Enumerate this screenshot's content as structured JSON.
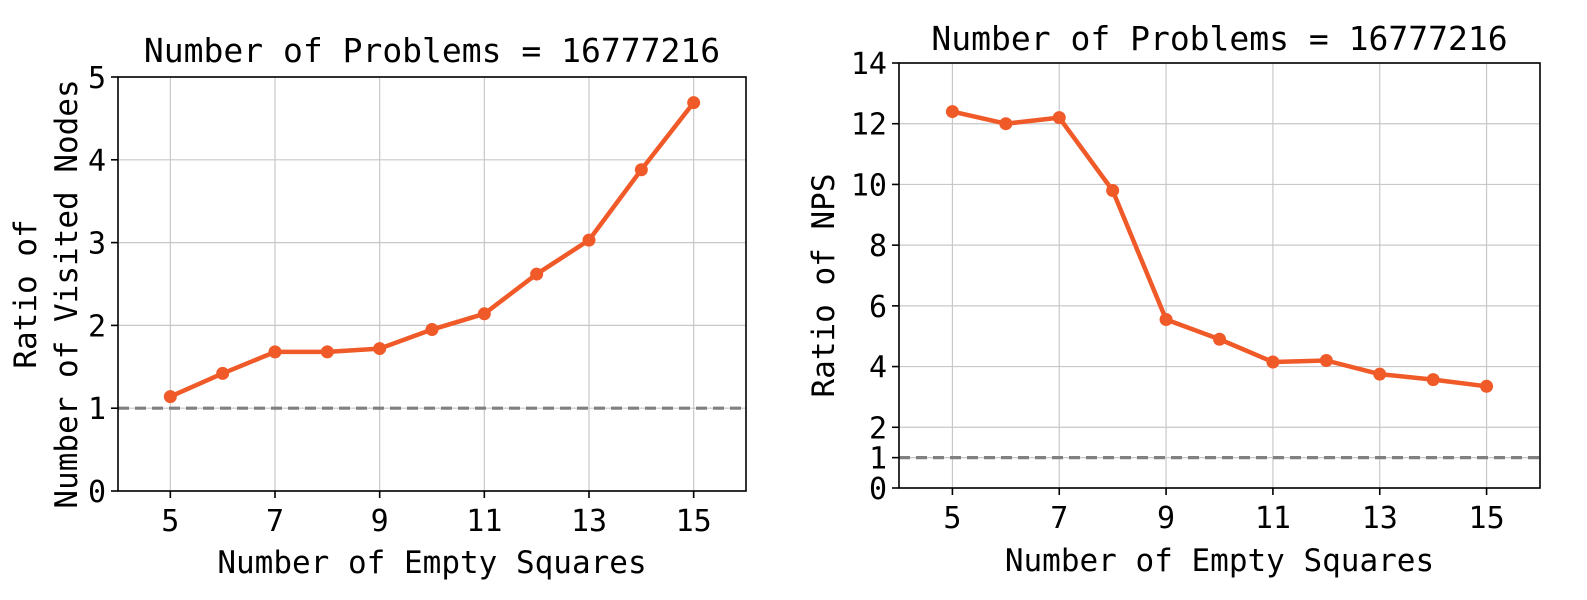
{
  "chart_data": [
    {
      "type": "line",
      "title": "Number of Problems = 16777216",
      "xlabel": "Number of Empty Squares",
      "ylabel": [
        "Ratio of",
        "Number of Visited Nodes"
      ],
      "x": [
        5,
        6,
        7,
        8,
        9,
        10,
        11,
        12,
        13,
        14,
        15
      ],
      "series": [
        {
          "values": [
            1.14,
            1.42,
            1.68,
            1.68,
            1.72,
            1.95,
            2.14,
            2.62,
            3.03,
            3.88,
            4.69
          ]
        }
      ],
      "xticks": [
        5,
        7,
        9,
        11,
        13,
        15
      ],
      "yticks": [
        0,
        1,
        2,
        3,
        4,
        5
      ],
      "xlim": [
        4,
        16
      ],
      "ylim": [
        0,
        5
      ],
      "reference_line": 1,
      "grid": true,
      "colors": {
        "line": "#f05a28",
        "reference": "#808080"
      }
    },
    {
      "type": "line",
      "title": "Number of Problems = 16777216",
      "xlabel": "Number of Empty Squares",
      "ylabel": [
        "Ratio of NPS"
      ],
      "x": [
        5,
        6,
        7,
        8,
        9,
        10,
        11,
        12,
        13,
        14,
        15
      ],
      "series": [
        {
          "values": [
            12.4,
            12.0,
            12.2,
            9.8,
            5.55,
            4.9,
            4.15,
            4.2,
            3.75,
            3.57,
            3.35
          ]
        }
      ],
      "xticks": [
        5,
        7,
        9,
        11,
        13,
        15
      ],
      "yticks": [
        0,
        1,
        2,
        4,
        6,
        8,
        10,
        12,
        14
      ],
      "xlim": [
        4,
        16
      ],
      "ylim": [
        0,
        14
      ],
      "reference_line": 1,
      "grid": true,
      "colors": {
        "line": "#f05a28",
        "reference": "#808080"
      }
    }
  ]
}
